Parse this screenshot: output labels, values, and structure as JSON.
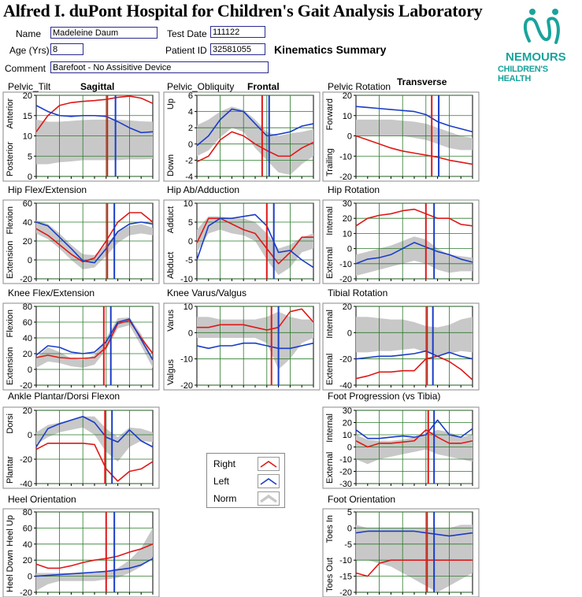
{
  "header": {
    "title": "Alfred I. duPont Hospital for Children's Gait Analysis Laboratory",
    "name_label": "Name",
    "name_value": "Madeleine Daum",
    "age_label": "Age (Yrs)",
    "age_value": "8",
    "comment_label": "Comment",
    "comment_value": "Barefoot - No Assisitive Device",
    "test_date_label": "Test Date",
    "test_date_value": "111122",
    "patient_id_label": "Patient ID",
    "patient_id_value": "32581055",
    "summary": "Kinematics Summary"
  },
  "logo": {
    "line1": "NEMOURS",
    "line2": "CHILDREN'S HEALTH",
    "color": "#1aa39c",
    "icon": "nemours-logo-icon"
  },
  "plane_labels": [
    "Sagittal",
    "Frontal",
    "Transverse"
  ],
  "legend": {
    "items": [
      {
        "label": "Right",
        "color": "#e01818"
      },
      {
        "label": "Left",
        "color": "#1a3cc8"
      },
      {
        "label": "Norm",
        "color": "#c8c8c8"
      }
    ]
  },
  "chart_data": [
    {
      "id": "pelvic_tilt",
      "type": "line",
      "title": "Pelvic_Tilt",
      "ylim": [
        0,
        20
      ],
      "yticks": [
        0,
        5,
        10,
        15,
        20
      ],
      "ylabel_top": "Anterior",
      "ylabel_bottom": "Posterior",
      "x": [
        0,
        10,
        20,
        30,
        40,
        50,
        60,
        70,
        80,
        90,
        100
      ],
      "right_toeoff": 61,
      "left_toeoff": 68,
      "series": [
        {
          "name": "Right",
          "values": [
            11,
            15,
            17.5,
            18.2,
            18.5,
            18.7,
            19,
            19.5,
            19.8,
            19.3,
            18
          ]
        },
        {
          "name": "Left",
          "values": [
            17.5,
            16,
            15,
            14.8,
            15,
            15,
            14.8,
            13.5,
            12,
            10.8,
            11
          ]
        }
      ],
      "norm": {
        "upper": [
          14,
          13.5,
          13.5,
          13.7,
          13.9,
          14,
          14,
          14,
          13.8,
          13.6,
          13.5
        ],
        "lower": [
          3,
          3,
          3.5,
          3.7,
          4,
          4,
          4,
          4,
          4.2,
          4.2,
          4.3
        ]
      }
    },
    {
      "id": "pelvic_obliquity",
      "type": "line",
      "title": "Pelvic_Obliquity",
      "ylim": [
        -4,
        6
      ],
      "yticks": [
        -4,
        -2,
        0,
        2,
        4,
        6
      ],
      "ylabel_top": "Up",
      "ylabel_bottom": "Down",
      "x": [
        0,
        10,
        20,
        30,
        40,
        50,
        60,
        70,
        80,
        90,
        100
      ],
      "right_toeoff": 56,
      "left_toeoff": 62,
      "series": [
        {
          "name": "Right",
          "values": [
            -2.2,
            -1.5,
            0.5,
            1.5,
            1,
            0,
            -0.8,
            -1.5,
            -1.5,
            -0.5,
            0.2
          ]
        },
        {
          "name": "Left",
          "values": [
            -0.2,
            1,
            3,
            4.3,
            4,
            2.5,
            1,
            1.2,
            1.5,
            2.2,
            2.5
          ]
        }
      ],
      "norm": {
        "upper": [
          2.3,
          3,
          4,
          4.6,
          4.2,
          3,
          1.5,
          1,
          1.3,
          1.5,
          1.8
        ],
        "lower": [
          -1.5,
          -0.8,
          0.8,
          2,
          1.5,
          -0.5,
          -2,
          -3.5,
          -3.8,
          -2.5,
          -1.5
        ]
      }
    },
    {
      "id": "pelvic_rotation",
      "type": "line",
      "title": "Pelvic Rotation",
      "ylim": [
        -20,
        20
      ],
      "yticks": [
        -20,
        -10,
        0,
        10,
        20
      ],
      "ylabel_top": "Forward",
      "ylabel_bottom": "Trailing",
      "x": [
        0,
        10,
        20,
        30,
        40,
        50,
        60,
        70,
        80,
        90,
        100
      ],
      "right_toeoff": 65,
      "left_toeoff": 71,
      "series": [
        {
          "name": "Right",
          "values": [
            0,
            -2,
            -4,
            -6,
            -7.5,
            -8.5,
            -9.5,
            -10.5,
            -12,
            -13,
            -14
          ]
        },
        {
          "name": "Left",
          "values": [
            14.5,
            14,
            13.5,
            13,
            12.5,
            12,
            10.5,
            7,
            5,
            3.5,
            2
          ]
        }
      ],
      "norm": {
        "upper": [
          8,
          8,
          8,
          8,
          7.5,
          7,
          6,
          4,
          2,
          0,
          -1
        ]
      },
      "norm_lower": [
        0,
        0,
        0,
        0,
        0,
        -1,
        -2,
        -4,
        -6,
        -7,
        -7
      ]
    },
    {
      "id": "hip_flex",
      "type": "line",
      "title": "Hip Flex/Extension",
      "ylim": [
        -20,
        60
      ],
      "yticks": [
        -20,
        0,
        20,
        40,
        60
      ],
      "ylabel_top": "Flexion",
      "ylabel_bottom": "Extension",
      "x": [
        0,
        10,
        20,
        30,
        40,
        50,
        60,
        70,
        80,
        90,
        100
      ],
      "right_toeoff": 61,
      "left_toeoff": 67,
      "series": [
        {
          "name": "Right",
          "values": [
            33,
            26,
            16,
            6,
            -2,
            2,
            20,
            40,
            50,
            50,
            40
          ]
        },
        {
          "name": "Left",
          "values": [
            40,
            36,
            24,
            12,
            -1,
            -3,
            12,
            30,
            38,
            40,
            38
          ]
        }
      ],
      "norm": {
        "upper": [
          42,
          38,
          28,
          16,
          6,
          5,
          16,
          30,
          36,
          38,
          34
        ],
        "lower": [
          28,
          22,
          12,
          0,
          -10,
          -8,
          4,
          18,
          26,
          28,
          26
        ]
      }
    },
    {
      "id": "hip_abd",
      "type": "line",
      "title": "Hip Ab/Adduction",
      "ylim": [
        -10,
        10
      ],
      "yticks": [
        -10,
        -5,
        0,
        5,
        10
      ],
      "ylabel_top": "Adduct",
      "ylabel_bottom": "Abduct",
      "x": [
        0,
        10,
        20,
        30,
        40,
        50,
        60,
        70,
        80,
        90,
        100
      ],
      "right_toeoff": 60,
      "left_toeoff": 66,
      "series": [
        {
          "name": "Right",
          "values": [
            -0.5,
            6,
            6,
            4.5,
            3,
            2,
            -2,
            -6,
            -3,
            1,
            1
          ]
        },
        {
          "name": "Left",
          "values": [
            -5,
            4,
            6,
            6,
            6.5,
            7,
            4,
            -3,
            -2.5,
            -5,
            -7
          ]
        }
      ],
      "norm": {
        "upper": [
          3,
          6.5,
          6.5,
          6,
          6,
          5,
          2,
          -2,
          -1,
          1,
          2
        ],
        "lower": [
          -3,
          2,
          3,
          2,
          1.5,
          0,
          -5,
          -9,
          -7,
          -3,
          -2
        ]
      }
    },
    {
      "id": "hip_rot",
      "type": "line",
      "title": "Hip Rotation",
      "ylim": [
        -20,
        30
      ],
      "yticks": [
        -20,
        -10,
        0,
        10,
        20,
        30
      ],
      "ylabel_top": "Internal",
      "ylabel_bottom": "External",
      "x": [
        0,
        10,
        20,
        30,
        40,
        50,
        60,
        70,
        80,
        90,
        100
      ],
      "right_toeoff": 60,
      "left_toeoff": 67,
      "series": [
        {
          "name": "Right",
          "values": [
            15,
            20,
            22,
            23,
            25,
            26,
            23,
            20,
            20,
            16,
            15
          ]
        },
        {
          "name": "Left",
          "values": [
            -10,
            -7,
            -6,
            -4,
            0,
            4,
            1,
            -2,
            -4,
            -7,
            -9
          ]
        }
      ],
      "norm": {
        "upper": [
          -4,
          -2,
          0,
          2,
          5,
          8,
          6,
          0,
          -4,
          -5,
          -6
        ],
        "lower": [
          -18,
          -16,
          -14,
          -12,
          -10,
          -8,
          -10,
          -14,
          -16,
          -15,
          -15
        ]
      }
    },
    {
      "id": "knee_flex",
      "type": "line",
      "title": "Knee Flex/Extension",
      "ylim": [
        -20,
        80
      ],
      "yticks": [
        -20,
        0,
        20,
        40,
        60,
        80
      ],
      "ylabel_top": "Flexion",
      "ylabel_bottom": "Extension",
      "x": [
        0,
        10,
        20,
        30,
        40,
        50,
        60,
        70,
        80,
        90,
        100
      ],
      "right_toeoff": 58,
      "left_toeoff": 64,
      "series": [
        {
          "name": "Right",
          "values": [
            15,
            18,
            15,
            14,
            14,
            15,
            28,
            58,
            62,
            40,
            20
          ]
        },
        {
          "name": "Left",
          "values": [
            18,
            30,
            28,
            22,
            20,
            22,
            35,
            60,
            64,
            38,
            12
          ]
        }
      ],
      "norm": {
        "upper": [
          15,
          28,
          22,
          14,
          12,
          18,
          40,
          65,
          66,
          45,
          14
        ],
        "lower": [
          2,
          10,
          8,
          4,
          2,
          6,
          25,
          52,
          56,
          30,
          2
        ]
      }
    },
    {
      "id": "knee_varus",
      "type": "line",
      "title": "Knee Varus/Valgus",
      "ylim": [
        -20,
        10
      ],
      "yticks": [
        -20,
        -10,
        0,
        10
      ],
      "ylabel_top": "Varus",
      "ylabel_bottom": "Valgus",
      "x": [
        0,
        10,
        20,
        30,
        40,
        50,
        60,
        70,
        80,
        90,
        100
      ],
      "right_toeoff": 64,
      "left_toeoff": 70,
      "series": [
        {
          "name": "Right",
          "values": [
            2,
            2,
            3,
            3,
            3,
            2,
            1,
            2,
            8,
            9,
            4
          ]
        },
        {
          "name": "Left",
          "values": [
            -5,
            -6,
            -5,
            -5,
            -4,
            -4,
            -5,
            -6,
            -6,
            -5,
            -4
          ]
        }
      ],
      "norm": {
        "upper": [
          6,
          6,
          5,
          5,
          5,
          5,
          6,
          8,
          6,
          5,
          5
        ],
        "lower": [
          -2,
          -2,
          -2,
          -2,
          -2,
          -2,
          -4,
          -14,
          -10,
          -4,
          -2
        ]
      }
    },
    {
      "id": "tibial_rot",
      "type": "line",
      "title": "Tibial Rotation",
      "ylim": [
        -40,
        20
      ],
      "yticks": [
        -40,
        -20,
        0,
        20
      ],
      "ylabel_top": "Internal",
      "ylabel_bottom": "External",
      "x": [
        0,
        10,
        20,
        30,
        40,
        50,
        60,
        70,
        80,
        90,
        100
      ],
      "right_toeoff": 61,
      "left_toeoff": 66,
      "series": [
        {
          "name": "Right",
          "values": [
            -35,
            -33,
            -30,
            -30,
            -29,
            -29,
            -20,
            -18,
            -22,
            -28,
            -36
          ]
        },
        {
          "name": "Left",
          "values": [
            -20,
            -19,
            -18,
            -18,
            -17,
            -16,
            -14,
            -18,
            -15,
            -18,
            -20
          ]
        }
      ],
      "norm": {
        "upper": [
          12,
          12,
          11,
          10,
          10,
          8,
          5,
          4,
          6,
          10,
          12
        ],
        "lower": [
          -15,
          -15,
          -14,
          -14,
          -13,
          -12,
          -15,
          -18,
          -16,
          -14,
          -15
        ]
      }
    },
    {
      "id": "ankle",
      "type": "line",
      "title": "Ankle Plantar/Dorsi Flexon",
      "ylim": [
        -40,
        20
      ],
      "yticks": [
        -40,
        -20,
        0,
        20
      ],
      "ylabel_top": "Dorsi",
      "ylabel_bottom": "Plantar",
      "x": [
        0,
        10,
        20,
        30,
        40,
        50,
        60,
        70,
        80,
        90,
        100
      ],
      "right_toeoff": 59,
      "left_toeoff": 65,
      "series": [
        {
          "name": "Right",
          "values": [
            -12,
            -7,
            -7,
            -7,
            -7,
            -8,
            -28,
            -38,
            -30,
            -28,
            -22
          ]
        },
        {
          "name": "Left",
          "values": [
            -10,
            5,
            9,
            12,
            15,
            10,
            -2,
            -6,
            4,
            -5,
            -10
          ]
        }
      ],
      "norm": {
        "upper": [
          2,
          8,
          10,
          12,
          15,
          15,
          5,
          -2,
          6,
          5,
          2
        ],
        "lower": [
          -8,
          -2,
          2,
          4,
          6,
          0,
          -14,
          -22,
          -10,
          -5,
          -6
        ]
      }
    },
    {
      "id": "foot_prog",
      "type": "line",
      "title": "Foot Progression (vs Tibia)",
      "ylim": [
        -30,
        30
      ],
      "yticks": [
        -30,
        -20,
        -10,
        0,
        10,
        20,
        30
      ],
      "ylabel_top": "Internal",
      "ylabel_bottom": "External",
      "x": [
        0,
        10,
        20,
        30,
        40,
        50,
        60,
        70,
        80,
        90,
        100
      ],
      "right_toeoff": 62,
      "left_toeoff": 67,
      "series": [
        {
          "name": "Right",
          "values": [
            5,
            0,
            3,
            3,
            4,
            5,
            14,
            8,
            3,
            3,
            5
          ]
        },
        {
          "name": "Left",
          "values": [
            14,
            7,
            7,
            8,
            9,
            8,
            10,
            22,
            10,
            8,
            15
          ]
        }
      ],
      "norm": {
        "upper": [
          10,
          6,
          5,
          5,
          6,
          8,
          10,
          14,
          12,
          8,
          10
        ],
        "lower": [
          -10,
          -14,
          -10,
          -8,
          -6,
          -4,
          -2,
          -6,
          -8,
          -10,
          -12
        ]
      }
    },
    {
      "id": "heel_orient",
      "type": "line",
      "title": "Heel Orientation",
      "ylim": [
        -20,
        80
      ],
      "yticks": [
        -20,
        0,
        20,
        40,
        60,
        80
      ],
      "ylabel_top": "Heel Up",
      "ylabel_bottom": "Heel Down",
      "x": [
        0,
        10,
        20,
        30,
        40,
        50,
        60,
        70,
        80,
        90,
        100
      ],
      "right_toeoff": 60,
      "left_toeoff": 67,
      "series": [
        {
          "name": "Right",
          "values": [
            15,
            10,
            10,
            13,
            17,
            20,
            22,
            25,
            30,
            34,
            40
          ]
        },
        {
          "name": "Left",
          "values": [
            0,
            1,
            2,
            3,
            4,
            5,
            6,
            8,
            10,
            14,
            22
          ]
        }
      ],
      "norm": {
        "upper": [
          4,
          4,
          4,
          4,
          4,
          4,
          6,
          10,
          20,
          35,
          60
        ],
        "lower": [
          -18,
          -10,
          -6,
          -6,
          -6,
          -6,
          -4,
          -2,
          4,
          12,
          24
        ]
      }
    },
    {
      "id": "foot_orient",
      "type": "line",
      "title": "Foot Orientation",
      "ylim": [
        -20,
        5
      ],
      "yticks": [
        -20,
        -15,
        -10,
        -5,
        0,
        5
      ],
      "ylabel_top": "Toes In",
      "ylabel_bottom": "Toes Out",
      "x": [
        0,
        10,
        20,
        30,
        40,
        50,
        60,
        70,
        80,
        90,
        100
      ],
      "right_toeoff": 61,
      "left_toeoff": 67,
      "series": [
        {
          "name": "Right",
          "values": [
            -14,
            -15,
            -11,
            -10,
            -10,
            -10,
            -10,
            -10,
            -10,
            -10,
            -10
          ]
        },
        {
          "name": "Left",
          "values": [
            -1.5,
            -1,
            -1,
            -1,
            -1,
            -1,
            -1.5,
            -2,
            -2.5,
            -2,
            -1.5
          ]
        }
      ],
      "norm": {
        "upper": [
          1,
          0,
          0,
          0,
          0,
          0,
          0,
          0,
          0,
          1,
          1
        ],
        "lower": [
          -10,
          -10,
          -11,
          -12,
          -14,
          -16,
          -18,
          -20,
          -18,
          -16,
          -14
        ]
      }
    }
  ]
}
